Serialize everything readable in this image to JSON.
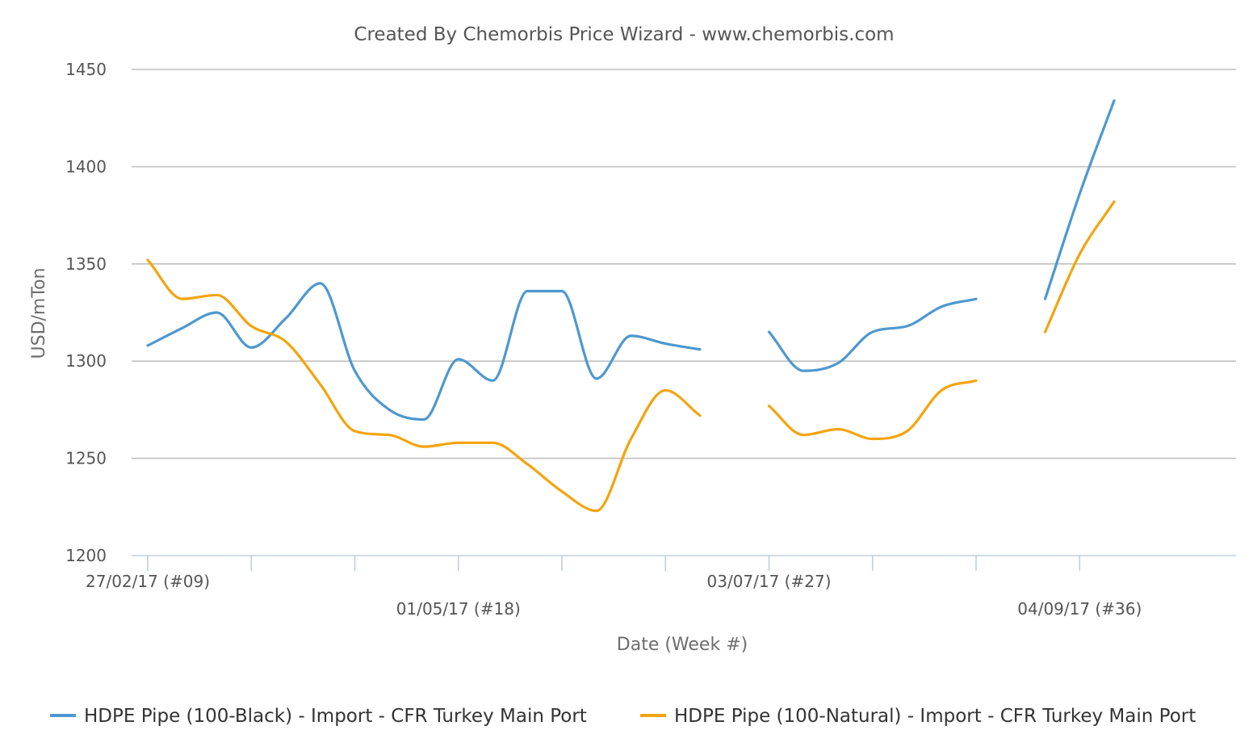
{
  "chart_data": {
    "type": "line",
    "title": "Created By Chemorbis Price Wizard - www.chemorbis.com",
    "xlabel": "Date (Week #)",
    "ylabel": "USD/mTon",
    "ylim": [
      1200,
      1450
    ],
    "yticks": [
      1200,
      1250,
      1300,
      1350,
      1400,
      1450
    ],
    "grid": true,
    "legend_position": "bottom",
    "x_start_week": 9,
    "x_end_week": 41,
    "tick_weeks": [
      9,
      12,
      15,
      18,
      21,
      24,
      27,
      30,
      33,
      36
    ],
    "labeled_ticks": [
      {
        "week": 9,
        "label": "27/02/17 (#09)",
        "row": 0
      },
      {
        "week": 18,
        "label": "01/05/17 (#18)",
        "row": 1
      },
      {
        "week": 27,
        "label": "03/07/17 (#27)",
        "row": 0
      },
      {
        "week": 36,
        "label": "04/09/17 (#36)",
        "row": 1
      }
    ],
    "x": [
      9,
      10,
      11,
      12,
      13,
      14,
      15,
      16,
      17,
      18,
      19,
      20,
      21,
      22,
      23,
      24,
      25,
      26,
      27,
      28,
      29,
      30,
      31,
      32,
      33,
      34,
      35,
      36,
      37
    ],
    "series": [
      {
        "name": "HDPE Pipe (100-Black) - Import - CFR Turkey Main Port",
        "color": "#4e98cf",
        "values": [
          1308,
          1317,
          1325,
          1307,
          1322,
          1340,
          1295,
          1275,
          1270,
          1301,
          1290,
          1336,
          1336,
          1291,
          1313,
          1309,
          1306,
          null,
          1315,
          1295,
          1299,
          1315,
          1318,
          1328,
          1332,
          null,
          1332,
          1386,
          1434
        ]
      },
      {
        "name": "HDPE Pipe (100-Natural) - Import - CFR Turkey Main Port",
        "color": "#f4a40f",
        "values": [
          1352,
          1332,
          1334,
          1318,
          1310,
          1288,
          1264,
          1262,
          1256,
          1258,
          1258,
          1247,
          1233,
          1223,
          1260,
          1285,
          1272,
          null,
          1277,
          1262,
          1265,
          1260,
          1264,
          1285,
          1290,
          null,
          1315,
          1355,
          1382
        ]
      }
    ]
  }
}
